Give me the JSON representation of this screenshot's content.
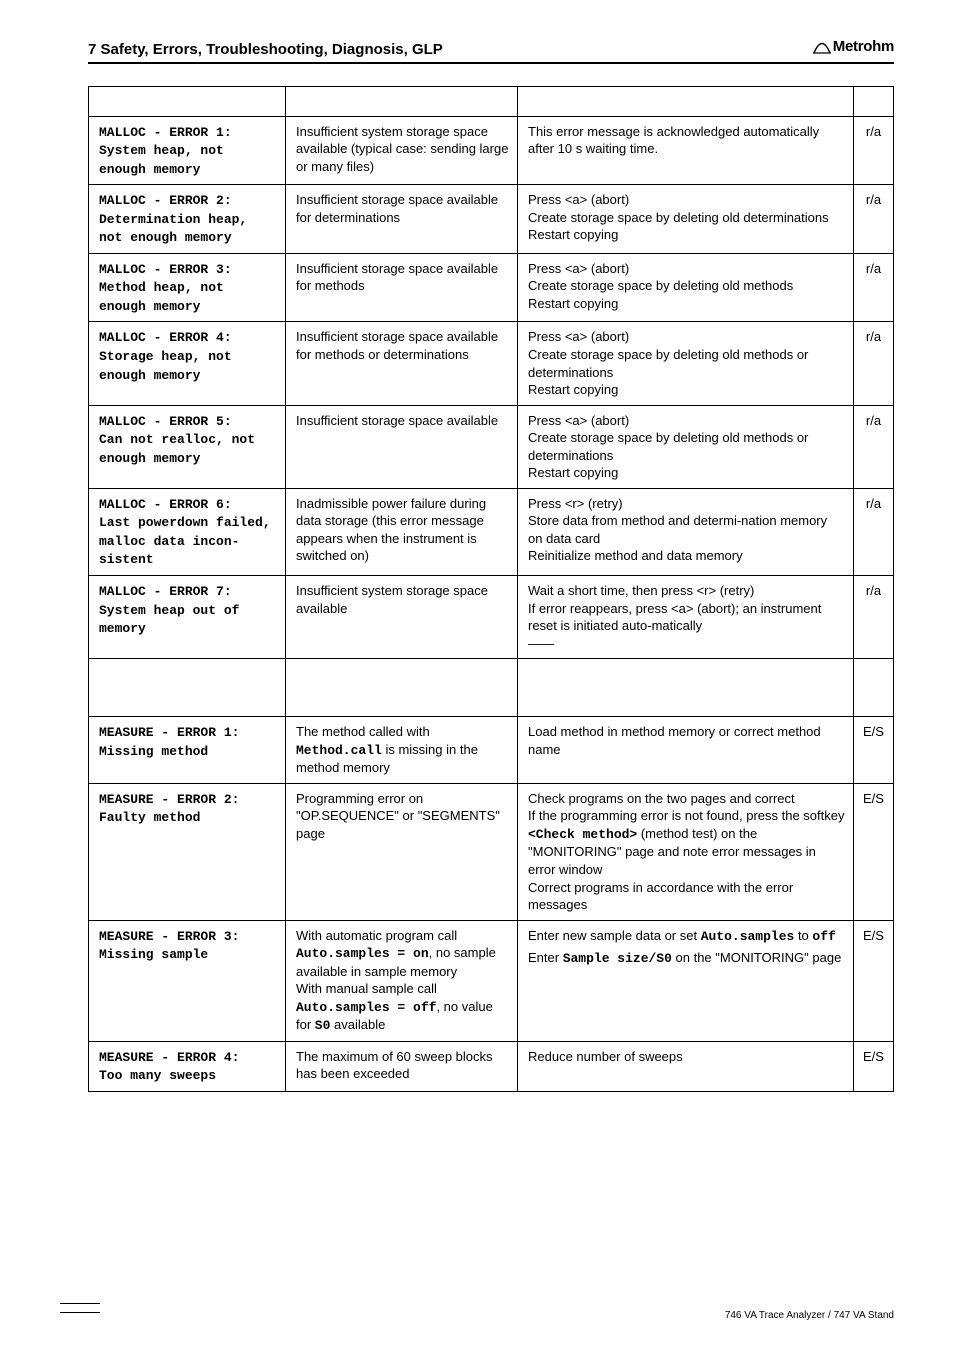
{
  "header": {
    "title": "7  Safety, Errors, Troubleshooting, Diagnosis, GLP",
    "brand": "Metrohm"
  },
  "footer": "746 VA Trace Analyzer / 747 VA Stand",
  "rows": [
    {
      "code": "MALLOC - ERROR 1:\nSystem heap, not enough memory",
      "cause": [
        {
          "t": "Insufficient system storage space available (typical case: sending large or many files)"
        }
      ],
      "remedy": [
        {
          "t": "This error message is acknowledged automatically after 10 s waiting time."
        }
      ],
      "tag": "r/a"
    },
    {
      "code": "MALLOC - ERROR 2:\nDetermination heap, not enough memory",
      "cause": [
        {
          "t": "Insufficient storage space available for determinations"
        }
      ],
      "remedy": [
        {
          "t": "Press <a> (abort)"
        },
        {
          "t": "Create storage space by deleting old determinations"
        },
        {
          "t": "Restart copying"
        }
      ],
      "tag": "r/a"
    },
    {
      "code": "MALLOC - ERROR 3:\nMethod heap, not enough memory",
      "cause": [
        {
          "t": "Insufficient storage space available for methods"
        }
      ],
      "remedy": [
        {
          "t": "Press <a> (abort)"
        },
        {
          "t": "Create storage space by deleting old methods"
        },
        {
          "t": "Restart copying"
        }
      ],
      "tag": "r/a"
    },
    {
      "code": "MALLOC - ERROR 4:\nStorage heap, not enough memory",
      "cause": [
        {
          "t": "Insufficient storage space available for methods or determinations"
        }
      ],
      "remedy": [
        {
          "t": "Press <a> (abort)"
        },
        {
          "t": "Create storage space by deleting old methods or determinations"
        },
        {
          "t": "Restart copying"
        }
      ],
      "tag": "r/a"
    },
    {
      "code": "MALLOC - ERROR 5:\nCan not realloc, not enough memory",
      "cause": [
        {
          "t": "Insufficient storage space available"
        }
      ],
      "remedy": [
        {
          "t": "Press <a> (abort)"
        },
        {
          "t": "Create storage space by deleting old methods or determinations"
        },
        {
          "t": "Restart copying"
        }
      ],
      "tag": "r/a"
    },
    {
      "code": "MALLOC - ERROR 6:\nLast powerdown failed, malloc data incon-\nsistent",
      "cause": [
        {
          "t": "Inadmissible power failure during data storage (this error message appears when the instrument is switched on)"
        }
      ],
      "remedy": [
        {
          "t": "Press <r> (retry)"
        },
        {
          "t": "Store data from method and determi-nation memory on data card"
        },
        {
          "t": "Reinitialize method and data memory"
        }
      ],
      "tag": "r/a"
    },
    {
      "code": "MALLOC - ERROR 7:\nSystem heap out of memory",
      "cause": [
        {
          "t": "Insufficient system storage space available"
        }
      ],
      "remedy": [
        {
          "t": "Wait a short time, then press <r> (retry)"
        },
        {
          "t": "If error reappears, press <a> (abort); an instrument reset is initiated auto-matically"
        },
        {
          "t": "——"
        }
      ],
      "tag": "r/a",
      "gap_after": true
    },
    {
      "code": "MEASURE - ERROR 1:\nMissing method",
      "cause": [
        {
          "t": "The method called with "
        },
        {
          "c": "Method.call",
          "t2": " is missing in the method memory"
        }
      ],
      "remedy": [
        {
          "t": "Load method in method memory or correct method name"
        }
      ],
      "tag": "E/S"
    },
    {
      "code": "MEASURE - ERROR 2:\nFaulty method",
      "cause": [
        {
          "t": "Programming error on \"OP.SEQUENCE\" or \"SEGMENTS\" page"
        }
      ],
      "remedy": [
        {
          "t": "Check programs on the two pages and correct"
        },
        {
          "t": "If the programming error is not found, press the softkey ",
          "c": "<Check method>",
          "t2": " (method test) on the \"MONITORING\" page and note error messages in error window"
        },
        {
          "t": "Correct programs in accordance with the error messages"
        }
      ],
      "tag": "E/S"
    },
    {
      "code": "MEASURE - ERROR 3:\nMissing sample",
      "cause": [
        {
          "t": "With automatic program call ",
          "c": "Auto.samples = on",
          "t2": ", no sample available in sample memory"
        },
        {
          "t": "With manual sample call ",
          "c": "Auto.samples = off",
          "t2": ", no value for ",
          "c2": "S0",
          "t3": " available"
        }
      ],
      "remedy": [
        {
          "t": "Enter new sample data or set ",
          "c": "Auto.samples",
          "t2": " to ",
          "c2": "off"
        },
        {
          "sp": true
        },
        {
          "t": "Enter ",
          "c": "Sample size/S0",
          "t2": " on the \"MONITORING\" page"
        }
      ],
      "tag": "E/S"
    },
    {
      "code": "MEASURE - ERROR 4:\nToo many sweeps",
      "cause": [
        {
          "t": "The maximum of 60 sweep blocks has been exceeded"
        }
      ],
      "remedy": [
        {
          "t": "Reduce number of sweeps"
        }
      ],
      "tag": "E/S"
    }
  ]
}
